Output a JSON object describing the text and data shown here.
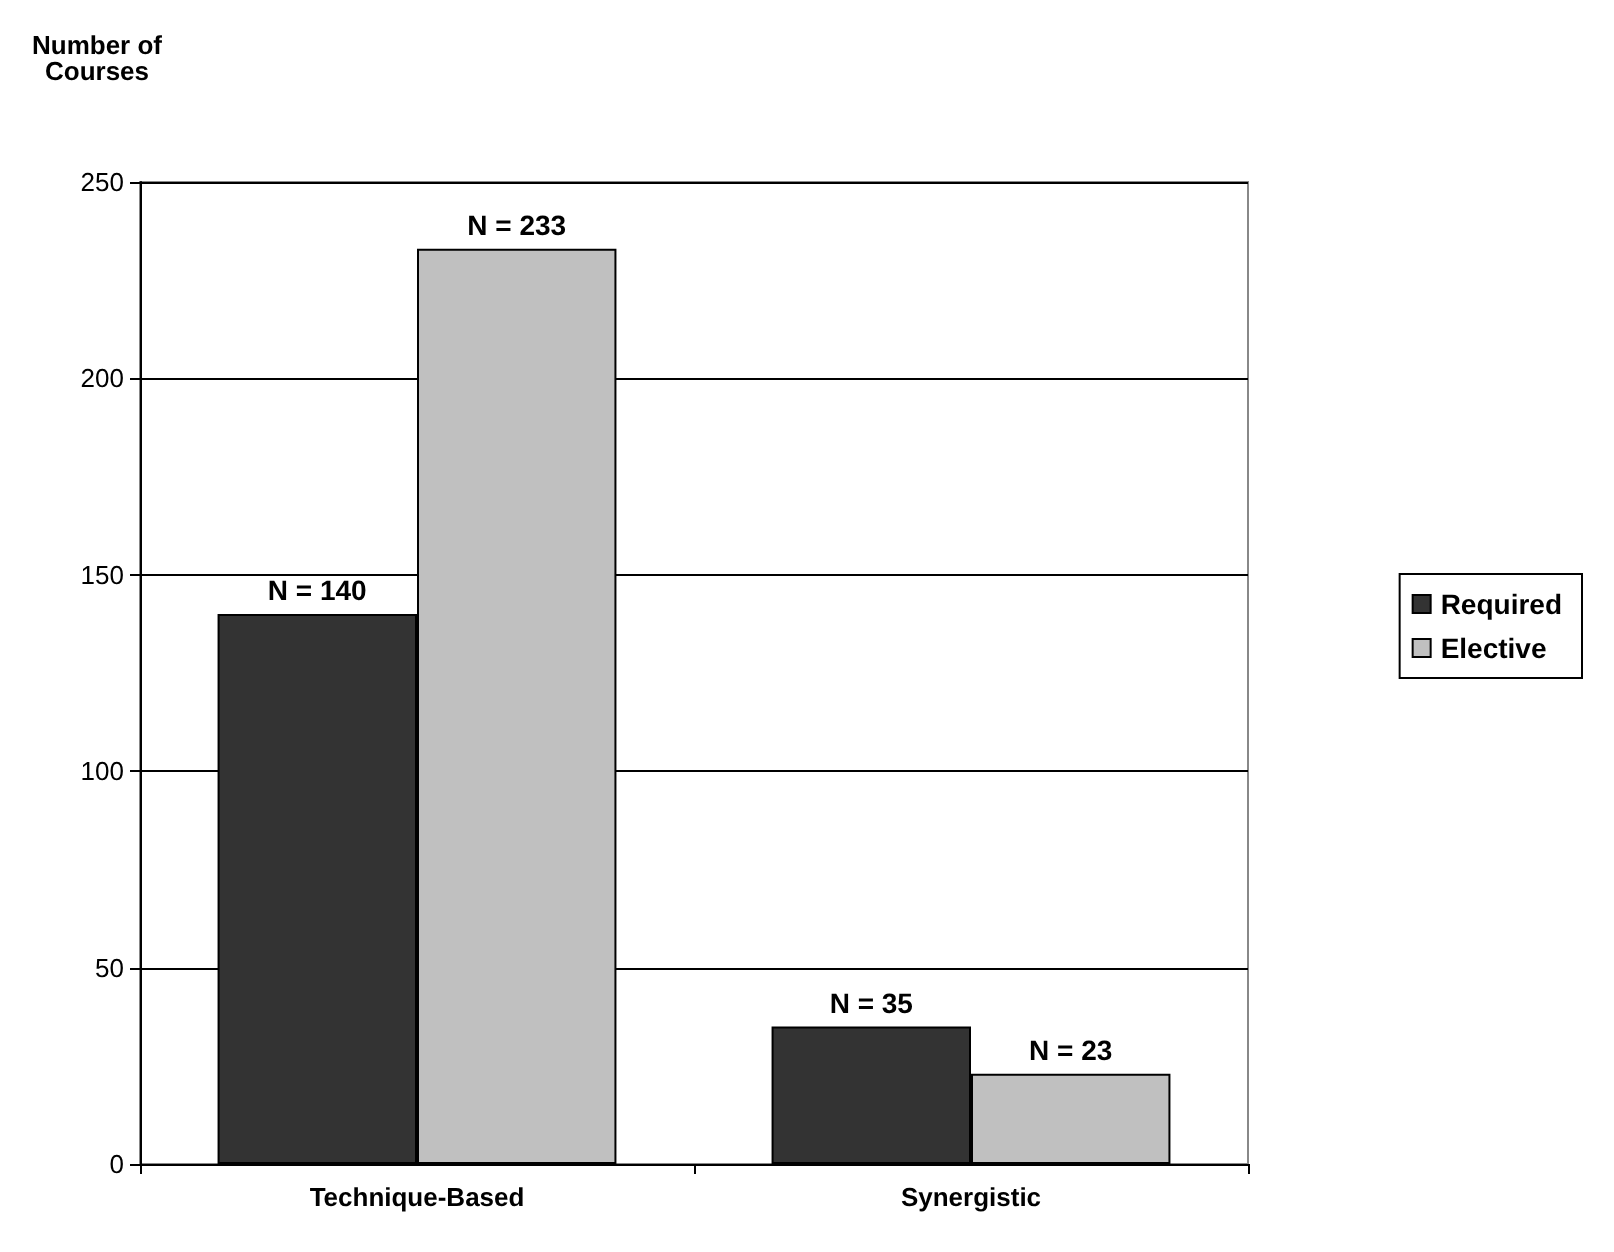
{
  "chart_data": {
    "type": "bar",
    "ylabel": "Number of\nCourses",
    "categories": [
      "Technique-Based",
      "Synergistic"
    ],
    "series": [
      {
        "name": "Required",
        "color": "#333333",
        "values": [
          140,
          35
        ],
        "value_labels": [
          "N = 140",
          "N = 35"
        ]
      },
      {
        "name": "Elective",
        "color": "#c0c0c0",
        "values": [
          233,
          23
        ],
        "value_labels": [
          "N = 233",
          "N = 23"
        ]
      }
    ],
    "ylim": [
      0,
      250
    ],
    "yticks": [
      0,
      50,
      100,
      150,
      200,
      250
    ],
    "grid": "y",
    "legend": "right"
  }
}
